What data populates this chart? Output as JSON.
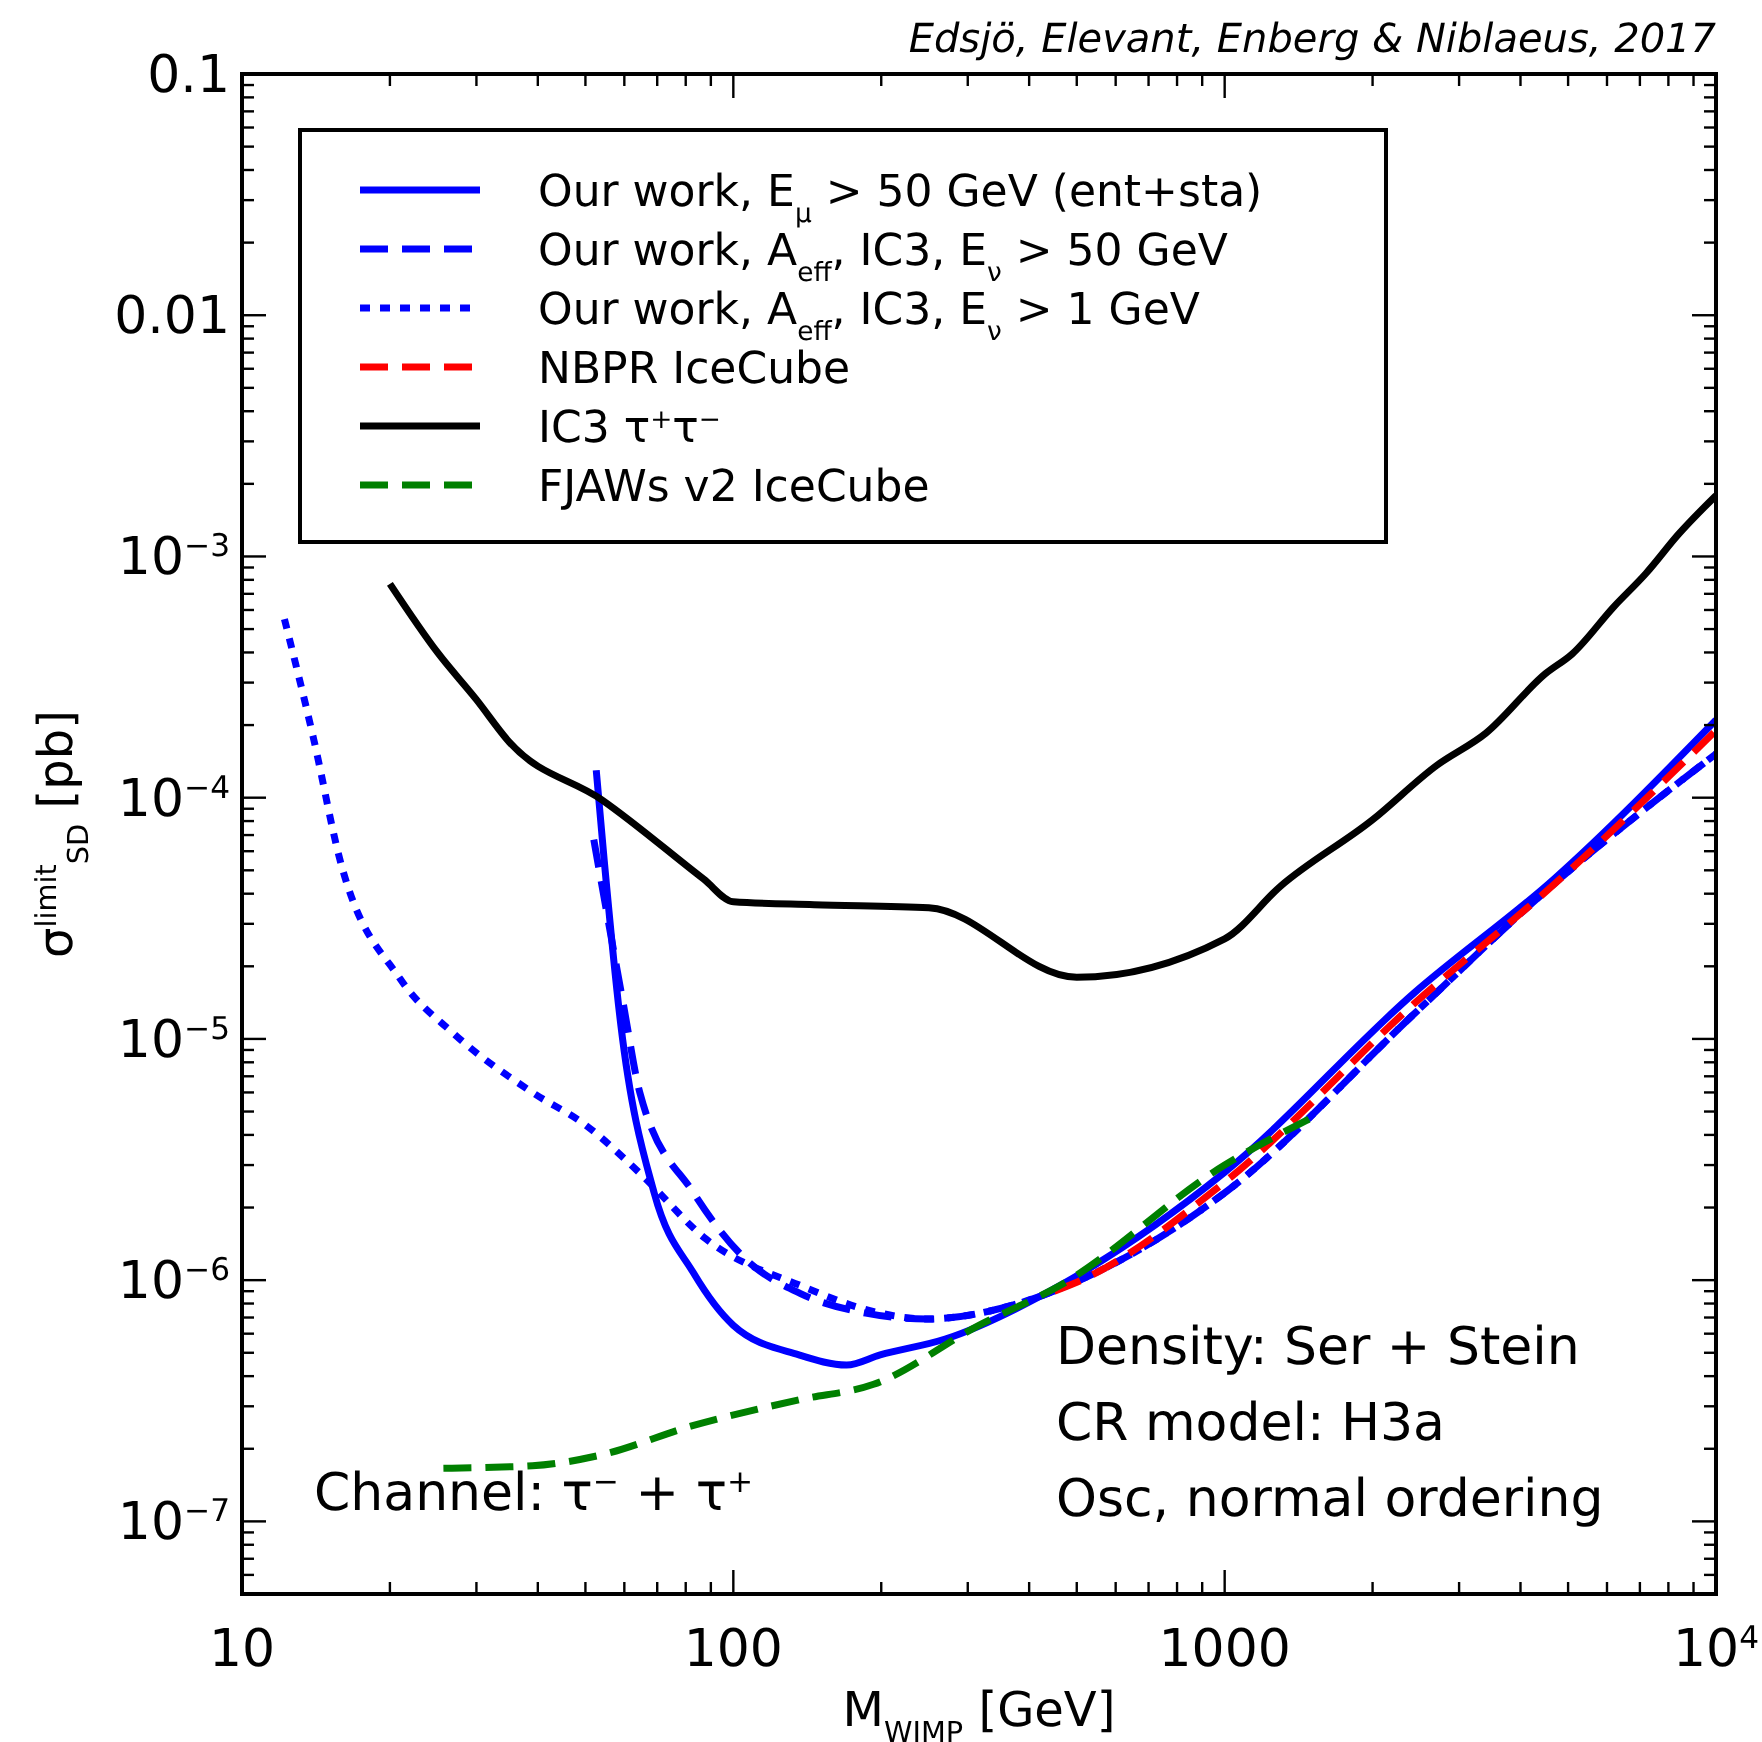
{
  "chart_data": {
    "type": "line",
    "xlabel": "M$_{WIMP}$ [GeV]",
    "ylabel": "σ$^{limit}$$_{SD}$ [pb]",
    "log": "xy",
    "xlim": [
      10,
      10000
    ],
    "ylim": [
      5e-08,
      0.1
    ],
    "xticks": [
      10,
      100,
      1000,
      {
        "value": 10000,
        "label": "10$^{4}$"
      },
      {
        "value": 20,
        "label": null
      },
      {
        "value": 30,
        "label": null
      },
      {
        "value": 40,
        "label": null
      },
      {
        "value": 50,
        "label": null
      },
      {
        "value": 60,
        "label": null
      },
      {
        "value": 70,
        "label": null
      },
      {
        "value": 80,
        "label": null
      },
      {
        "value": 90,
        "label": null
      },
      {
        "value": 200,
        "label": null
      },
      {
        "value": 300,
        "label": null
      },
      {
        "value": 400,
        "label": null
      },
      {
        "value": 500,
        "label": null
      },
      {
        "value": 600,
        "label": null
      },
      {
        "value": 700,
        "label": null
      },
      {
        "value": 800,
        "label": null
      },
      {
        "value": 900,
        "label": null
      },
      {
        "value": 2000,
        "label": null
      },
      {
        "value": 3000,
        "label": null
      },
      {
        "value": 4000,
        "label": null
      },
      {
        "value": 5000,
        "label": null
      },
      {
        "value": 6000,
        "label": null
      },
      {
        "value": 7000,
        "label": null
      },
      {
        "value": 8000,
        "label": null
      },
      {
        "value": 9000,
        "label": null
      }
    ],
    "yticks": [
      0.1,
      0.01,
      {
        "value": 0.001,
        "label": "10$^{−3}$"
      },
      {
        "value": 0.0001,
        "label": "10$^{−4}$"
      },
      {
        "value": 1e-05,
        "label": "10$^{−5}$"
      },
      {
        "value": 1e-06,
        "label": "10$^{−6}$"
      },
      {
        "value": 1e-07,
        "label": "10$^{−7}$"
      },
      {
        "value": 6e-08,
        "label": null
      },
      {
        "value": 7e-08,
        "label": null
      },
      {
        "value": 8e-08,
        "label": null
      },
      {
        "value": 9e-08,
        "label": null
      },
      {
        "value": 2e-07,
        "label": null
      },
      {
        "value": 3e-07,
        "label": null
      },
      {
        "value": 4e-07,
        "label": null
      },
      {
        "value": 5e-07,
        "label": null
      },
      {
        "value": 6e-07,
        "label": null
      },
      {
        "value": 7e-07,
        "label": null
      },
      {
        "value": 8e-07,
        "label": null
      },
      {
        "value": 9e-07,
        "label": null
      },
      {
        "value": 2e-06,
        "label": null
      },
      {
        "value": 3e-06,
        "label": null
      },
      {
        "value": 4e-06,
        "label": null
      },
      {
        "value": 5e-06,
        "label": null
      },
      {
        "value": 6e-06,
        "label": null
      },
      {
        "value": 7e-06,
        "label": null
      },
      {
        "value": 8e-06,
        "label": null
      },
      {
        "value": 9e-06,
        "label": null
      },
      {
        "value": 2e-05,
        "label": null
      },
      {
        "value": 3e-05,
        "label": null
      },
      {
        "value": 4e-05,
        "label": null
      },
      {
        "value": 5e-05,
        "label": null
      },
      {
        "value": 6e-05,
        "label": null
      },
      {
        "value": 7e-05,
        "label": null
      },
      {
        "value": 8e-05,
        "label": null
      },
      {
        "value": 9e-05,
        "label": null
      },
      {
        "value": 0.0002,
        "label": null
      },
      {
        "value": 0.0003,
        "label": null
      },
      {
        "value": 0.0004,
        "label": null
      },
      {
        "value": 0.0005,
        "label": null
      },
      {
        "value": 0.0006,
        "label": null
      },
      {
        "value": 0.0007,
        "label": null
      },
      {
        "value": 0.0008,
        "label": null
      },
      {
        "value": 0.0009,
        "label": null
      },
      {
        "value": 0.002,
        "label": null
      },
      {
        "value": 0.003,
        "label": null
      },
      {
        "value": 0.004,
        "label": null
      },
      {
        "value": 0.005,
        "label": null
      },
      {
        "value": 0.006,
        "label": null
      },
      {
        "value": 0.007,
        "label": null
      },
      {
        "value": 0.008,
        "label": null
      },
      {
        "value": 0.009,
        "label": null
      },
      {
        "value": 0.02,
        "label": null
      },
      {
        "value": 0.03,
        "label": null
      },
      {
        "value": 0.04,
        "label": null
      },
      {
        "value": 0.05,
        "label": null
      },
      {
        "value": 0.06,
        "label": null
      },
      {
        "value": 0.07,
        "label": null
      },
      {
        "value": 0.08,
        "label": null
      },
      {
        "value": 0.09,
        "label": null
      }
    ],
    "grid": false,
    "legend": "top left",
    "marker": "none",
    "series": [
      {
        "name": "Our work, E$_{μ}$ > 50 GeV (ent+sta)",
        "color": "#0000ff",
        "line_style": "solid",
        "x": [
          52.6,
          54.6,
          59,
          69,
          83,
          100,
          136,
          170,
          199,
          270,
          462,
          1000,
          2430,
          4680,
          10000
        ],
        "values": [
          0.00013,
          5.5e-05,
          1.15e-05,
          2.3e-06,
          1.07e-06,
          6.5e-07,
          4.9e-07,
          4.45e-07,
          4.9e-07,
          5.7e-07,
          9.5e-07,
          2.8e-06,
          1.55e-05,
          4.6e-05,
          0.00021
        ]
      },
      {
        "name": "Our work, A$_{eff}$, IC3, E$_{ν}$ > 50 GeV",
        "color": "#0000ff",
        "line_style": "dashed",
        "x": [
          52,
          59.7,
          64.5,
          83,
          106,
          137,
          186,
          247,
          372,
          507,
          1000,
          2430,
          4500,
          10000
        ],
        "values": [
          6.7e-05,
          1.4e-05,
          6e-06,
          2.3e-06,
          1.22e-06,
          8.8e-07,
          7.3e-07,
          6.9e-07,
          7.9e-07,
          1e-06,
          2.3e-06,
          1.27e-05,
          4.1e-05,
          0.000152
        ]
      },
      {
        "name": "Our work, A$_{eff}$, IC3, E$_{ν}$ > 1 GeV",
        "color": "#0000ff",
        "line_style": "dotted",
        "x": [
          12.2,
          14,
          15.8,
          21,
          27,
          39,
          50,
          64.6,
          88,
          137,
          199,
          247,
          372,
          507,
          1000,
          2430,
          4500,
          10000
        ],
        "values": [
          0.00055,
          0.000174,
          5.6e-05,
          1.77e-05,
          1.05e-05,
          6e-06,
          4.4e-06,
          2.77e-06,
          1.48e-06,
          9.5e-07,
          7.3e-07,
          6.9e-07,
          7.9e-07,
          1e-06,
          2.3e-06,
          1.27e-05,
          4.1e-05,
          0.000152
        ]
      },
      {
        "name": "NBPR IceCube",
        "color": "#ff0000",
        "line_style": "dashed",
        "x": [
          450,
          500,
          1000,
          2430,
          4700,
          10000
        ],
        "values": [
          9e-07,
          9.8e-07,
          2.55e-06,
          1.4e-05,
          4.4e-05,
          0.00019
        ]
      },
      {
        "name": "IC3 τ$^{+}$τ$^{−}$",
        "color": "#000000",
        "line_style": "solid",
        "x": [
          20,
          25,
          30,
          35,
          54,
          87,
          100,
          146,
          250,
          500,
          1000,
          1300,
          2000,
          2700,
          3400,
          4500,
          5100,
          6200,
          7200,
          8400,
          10000
        ],
        "values": [
          0.00077,
          0.0004,
          0.000255,
          0.00017,
          9.8e-05,
          4.6e-05,
          3.7e-05,
          3.6e-05,
          3.5e-05,
          1.8e-05,
          2.6e-05,
          4.3e-05,
          8.1e-05,
          0.000136,
          0.000185,
          0.000327,
          0.000395,
          0.00062,
          0.00085,
          0.00124,
          0.00179
        ]
      },
      {
        "name": "FJAWs v2 IceCube",
        "color": "#008000",
        "line_style": "dashed",
        "x": [
          25.7,
          39,
          53.5,
          83,
          137,
          193,
          316,
          462,
          1000,
          1560
        ],
        "values": [
          1.66e-07,
          1.7e-07,
          1.88e-07,
          2.5e-07,
          3.2e-07,
          3.7e-07,
          6.5e-07,
          9.5e-07,
          3e-06,
          4.9e-06
        ]
      }
    ],
    "annotations": [
      "Edsjö, Elevant, Enberg & Niblaeus, 2017",
      "Channel: τ$^{−}$ + τ$^{+}$",
      "Density: Ser + Stein",
      "CR model: H3a",
      "Osc, normal ordering"
    ]
  }
}
